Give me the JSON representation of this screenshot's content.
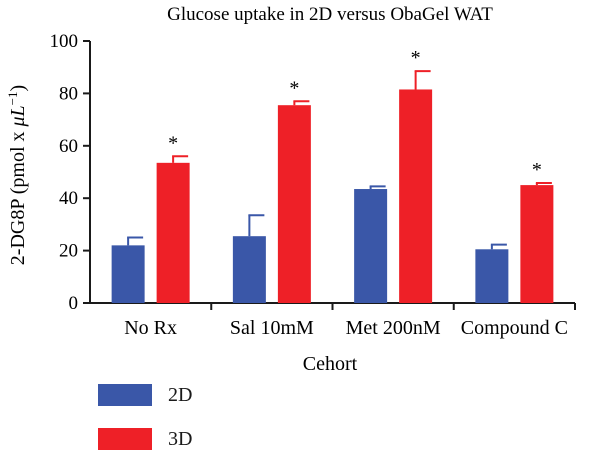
{
  "chart_data": {
    "type": "bar",
    "title": "Glucose uptake in 2D versus ObaGel WAT",
    "xlabel": "Cehort",
    "ylabel_parts": [
      "2-DG8P (pmol x ",
      "μ",
      "L",
      "−1",
      ")"
    ],
    "ylim": [
      0,
      100
    ],
    "yticks": [
      0,
      20,
      40,
      60,
      80,
      100
    ],
    "categories": [
      "No Rx",
      "Sal 10mM",
      "Met 200nM",
      "Compound C"
    ],
    "series": [
      {
        "name": "2D",
        "color": "#3a57a8",
        "values": [
          22,
          25.5,
          43.5,
          20.5
        ],
        "errors": [
          3,
          8,
          1,
          1.8
        ]
      },
      {
        "name": "3D",
        "color": "#ee2027",
        "values": [
          53.5,
          75.5,
          81.5,
          45
        ],
        "errors": [
          2.5,
          1.5,
          7,
          0.8
        ]
      }
    ],
    "significance": [
      "*",
      "*",
      "*",
      "*"
    ],
    "significance_series": "3D",
    "legend_position": "bottom-left"
  }
}
